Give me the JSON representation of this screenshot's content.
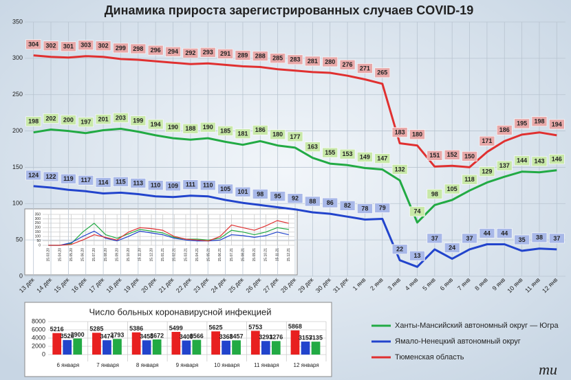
{
  "chart_data": [
    {
      "type": "line",
      "title": "Динамика прироста зарегистрированных случаев COVID-19",
      "categories": [
        "13 дек",
        "14 дек",
        "15 дек",
        "16 дек",
        "17 дек",
        "18 дек",
        "19 дек",
        "20 дек",
        "21 дек",
        "22 дек",
        "23 дек",
        "24 дек",
        "25 дек",
        "26 дек",
        "27 дек",
        "28 дек",
        "29 дек",
        "30 дек",
        "31 дек",
        "1 янв",
        "2 янв",
        "3 янв",
        "4 янв",
        "5 янв",
        "6 янв",
        "7 янв",
        "8 янв",
        "9 янв",
        "10 янв",
        "11 янв",
        "12 янв"
      ],
      "series": [
        {
          "name": "Ханты-Мансийский автономный округ — Югра",
          "color": "#22aa44",
          "label_color": "#c8e8a8",
          "values": [
            198,
            202,
            200,
            197,
            201,
            203,
            199,
            194,
            190,
            188,
            190,
            185,
            181,
            186,
            180,
            177,
            163,
            155,
            153,
            149,
            147,
            132,
            74,
            98,
            105,
            118,
            129,
            137,
            144,
            143,
            146
          ]
        },
        {
          "name": "Ямало-Ненецкий автономный округ",
          "color": "#2244cc",
          "label_color": "#a8b8e8",
          "values": [
            124,
            122,
            119,
            117,
            114,
            115,
            113,
            110,
            109,
            111,
            110,
            105,
            101,
            98,
            95,
            92,
            88,
            86,
            82,
            78,
            79,
            22,
            13,
            37,
            24,
            37,
            44,
            44,
            35,
            38,
            37
          ]
        },
        {
          "name": "Тюменская область",
          "color": "#e03030",
          "label_color": "#e8a8a8",
          "values": [
            304,
            302,
            301,
            303,
            302,
            299,
            298,
            296,
            294,
            292,
            293,
            291,
            289,
            288,
            285,
            283,
            281,
            280,
            276,
            271,
            265,
            183,
            180,
            151,
            152,
            150,
            171,
            186,
            195,
            198,
            194
          ]
        }
      ],
      "ylim": [
        0,
        350
      ],
      "yticks": [
        0,
        50,
        100,
        150,
        200,
        250,
        300,
        350
      ],
      "grid": true,
      "data_labels": true,
      "legend": "bottom-right"
    },
    {
      "type": "line",
      "categories": [
        "15.03.20",
        "15.04.20",
        "15.05.20",
        "15.06.20",
        "15.07.20",
        "15.08.20",
        "15.09.20",
        "15.10.20",
        "15.11.20",
        "15.12.20",
        "15.01.21",
        "15.02.21",
        "15.03.21",
        "15.04.21",
        "15.05.21",
        "15.06.21",
        "15.07.21",
        "15.08.21",
        "15.09.21",
        "15.10.21",
        "15.11.21",
        "15.12.21"
      ],
      "series": [
        {
          "color": "#22aa44",
          "values": [
            0,
            0,
            20,
            150,
            250,
            120,
            80,
            130,
            180,
            160,
            140,
            90,
            70,
            70,
            60,
            80,
            170,
            150,
            120,
            150,
            200,
            180
          ]
        },
        {
          "color": "#2244cc",
          "values": [
            0,
            0,
            30,
            100,
            160,
            80,
            50,
            100,
            160,
            140,
            120,
            80,
            60,
            50,
            50,
            60,
            120,
            110,
            90,
            110,
            150,
            120
          ]
        },
        {
          "color": "#e03030",
          "values": [
            0,
            0,
            10,
            60,
            120,
            90,
            60,
            150,
            200,
            190,
            170,
            100,
            70,
            60,
            50,
            100,
            230,
            200,
            170,
            220,
            280,
            250
          ]
        }
      ],
      "ylim": [
        0,
        350
      ],
      "yticks": [
        0,
        50,
        100,
        150,
        200,
        250,
        300,
        350
      ],
      "grid": true
    },
    {
      "type": "bar",
      "title": "Число больных коронавирусной  инфекцией",
      "categories": [
        "6 января",
        "7 января",
        "8 января",
        "9 января",
        "10 января",
        "11 января",
        "12 января"
      ],
      "series": [
        {
          "color": "#e82020",
          "values": [
            5216,
            5285,
            5386,
            5499,
            5625,
            5753,
            5868
          ]
        },
        {
          "color": "#2244cc",
          "values": [
            3526,
            3474,
            3455,
            3409,
            3368,
            3291,
            3157
          ]
        },
        {
          "color": "#22aa44",
          "values": [
            3900,
            3793,
            3672,
            3566,
            3457,
            3276,
            3135
          ]
        }
      ],
      "ylim": [
        0,
        8000
      ],
      "yticks": [
        0,
        2000,
        4000,
        6000,
        8000
      ],
      "grid": true
    }
  ],
  "logo": "mu"
}
